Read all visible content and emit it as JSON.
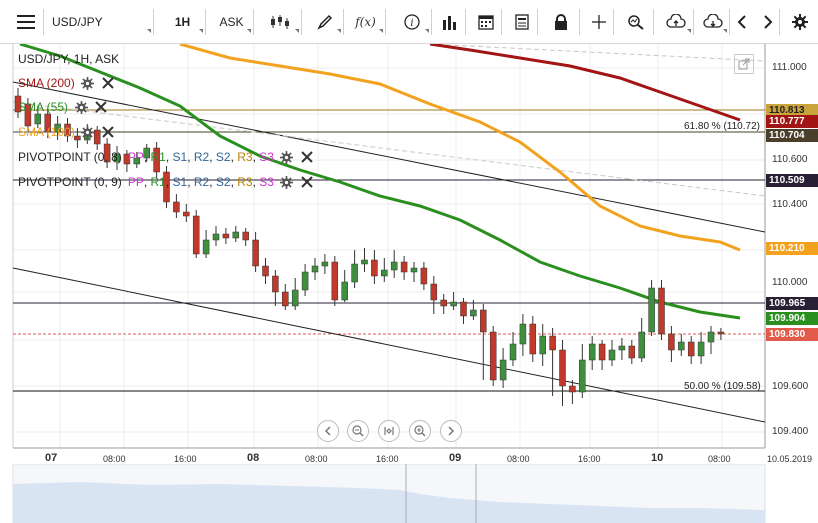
{
  "toolbar": {
    "symbol": "USD/JPY",
    "timeframe": "1H",
    "price_side": "ASK"
  },
  "legend": {
    "title": "USD/JPY, 1H, ASK",
    "sma200": "SMA (200)",
    "sma55": "SMA (55)",
    "sma100": "SMA (100)",
    "pivot1_name": "PIVOTPOINT (0, 8)",
    "pivot2_name": "PIVOTPOINT (0, 9)",
    "pivot_levels": [
      "PP",
      "R1",
      "S1",
      "R2",
      "S2",
      "R3",
      "S3"
    ],
    "pivot_colors": [
      "#cc33cc",
      "#2a8f2a",
      "#336699",
      "#336699",
      "#336699",
      "#b8860b",
      "#cc33cc"
    ]
  },
  "colors": {
    "sma200": "#a31515",
    "sma55": "#2a8f1f",
    "sma100": "#f2a21e",
    "bull": "#3f8f3f",
    "bear": "#c0392b",
    "current": "#e25b4a",
    "pivot_tag": "#2a2035"
  },
  "price_axis": {
    "ticks": [
      "111.000",
      "110.800",
      "110.600",
      "110.400",
      "110.200",
      "110.000",
      "109.800",
      "109.600",
      "109.400"
    ],
    "tags": [
      {
        "label": "110.813",
        "color": "#c9a43b"
      },
      {
        "label": "110.777",
        "color": "#a31515"
      },
      {
        "label": "110.704",
        "color": "#4a3f2a"
      },
      {
        "label": "110.509",
        "color": "#2a2035"
      },
      {
        "label": "110.210",
        "color": "#f2a21e"
      },
      {
        "label": "109.965",
        "color": "#2a2035"
      },
      {
        "label": "109.904",
        "color": "#2a8f1f"
      },
      {
        "label": "109.830",
        "color": "#e25b4a"
      }
    ]
  },
  "fib": {
    "level_618": "61.80 % (110.72)",
    "level_50": "50.00 % (109.58)"
  },
  "time_axis": {
    "labels": [
      "07",
      "08:00",
      "16:00",
      "08",
      "08:00",
      "16:00",
      "09",
      "08:00",
      "16:00",
      "10",
      "08:00",
      "10.05.2019"
    ]
  },
  "chart_data": {
    "type": "candlestick",
    "title": "USD/JPY, 1H, ASK",
    "current_price": 109.83,
    "ylim": [
      109.33,
      111.1
    ],
    "horizontal_levels": [
      110.813,
      110.777,
      110.704,
      110.509,
      109.965,
      109.57
    ],
    "sma_last_values": {
      "SMA (200)": 110.777,
      "SMA (55)": 109.904,
      "SMA (100)": 110.21
    }
  }
}
